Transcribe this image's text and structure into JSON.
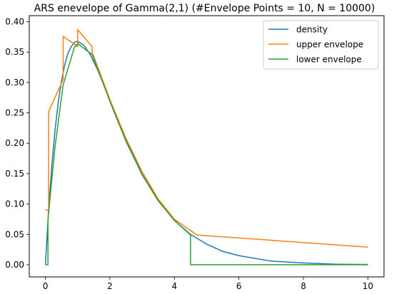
{
  "chart_data": {
    "type": "line",
    "title": "ARS enevelope of Gamma(2,1) (#Envelope Points = 10, N = 10000)",
    "xlabel": "",
    "ylabel": "",
    "xlim": [
      -0.5,
      10.5
    ],
    "ylim": [
      -0.02,
      0.41
    ],
    "xticks": [
      0,
      2,
      4,
      6,
      8,
      10
    ],
    "xtick_labels": [
      "0",
      "2",
      "4",
      "6",
      "8",
      "10"
    ],
    "yticks": [
      0,
      0.05,
      0.1,
      0.15,
      0.2,
      0.25,
      0.3,
      0.35,
      0.4
    ],
    "ytick_labels": [
      "0.00",
      "0.05",
      "0.10",
      "0.15",
      "0.20",
      "0.25",
      "0.30",
      "0.35",
      "0.40"
    ],
    "grid": false,
    "legend_position": "top-right",
    "series": [
      {
        "name": "density",
        "color": "#1f77b4",
        "x": [
          0,
          0.1,
          0.2,
          0.3,
          0.4,
          0.5,
          0.6,
          0.7,
          0.8,
          0.9,
          1.0,
          1.2,
          1.4,
          1.6,
          1.8,
          2.0,
          2.5,
          3.0,
          3.5,
          4.0,
          4.5,
          5.0,
          5.5,
          6.0,
          7.0,
          8.0,
          9.0,
          10.0
        ],
        "y": [
          0,
          0.09,
          0.164,
          0.222,
          0.268,
          0.303,
          0.329,
          0.348,
          0.359,
          0.366,
          0.368,
          0.361,
          0.345,
          0.323,
          0.298,
          0.271,
          0.205,
          0.149,
          0.106,
          0.073,
          0.05,
          0.034,
          0.022,
          0.015,
          0.006,
          0.003,
          0.001,
          0.0005
        ]
      },
      {
        "name": "upper envelope",
        "color": "#ff7f0e",
        "x": [
          0,
          0.1,
          0.1,
          0.55,
          0.55,
          1.0,
          1.0,
          1.45,
          1.45,
          2.0,
          2.5,
          3.0,
          3.5,
          4.0,
          4.7,
          10.0
        ],
        "y": [
          0.09,
          0.09,
          0.252,
          0.305,
          0.376,
          0.359,
          0.387,
          0.359,
          0.35,
          0.272,
          0.208,
          0.153,
          0.108,
          0.075,
          0.049,
          0.029
        ]
      },
      {
        "name": "lower envelope",
        "color": "#2ca02c",
        "x": [
          0,
          0.08,
          0.08,
          0.3,
          0.55,
          0.9,
          1.0,
          1.45,
          2.0,
          2.5,
          3.0,
          3.5,
          4.0,
          4.5,
          4.5,
          10.0
        ],
        "y": [
          0,
          0,
          0.075,
          0.195,
          0.296,
          0.358,
          0.364,
          0.346,
          0.269,
          0.203,
          0.148,
          0.105,
          0.073,
          0.049,
          0,
          0
        ]
      }
    ]
  }
}
